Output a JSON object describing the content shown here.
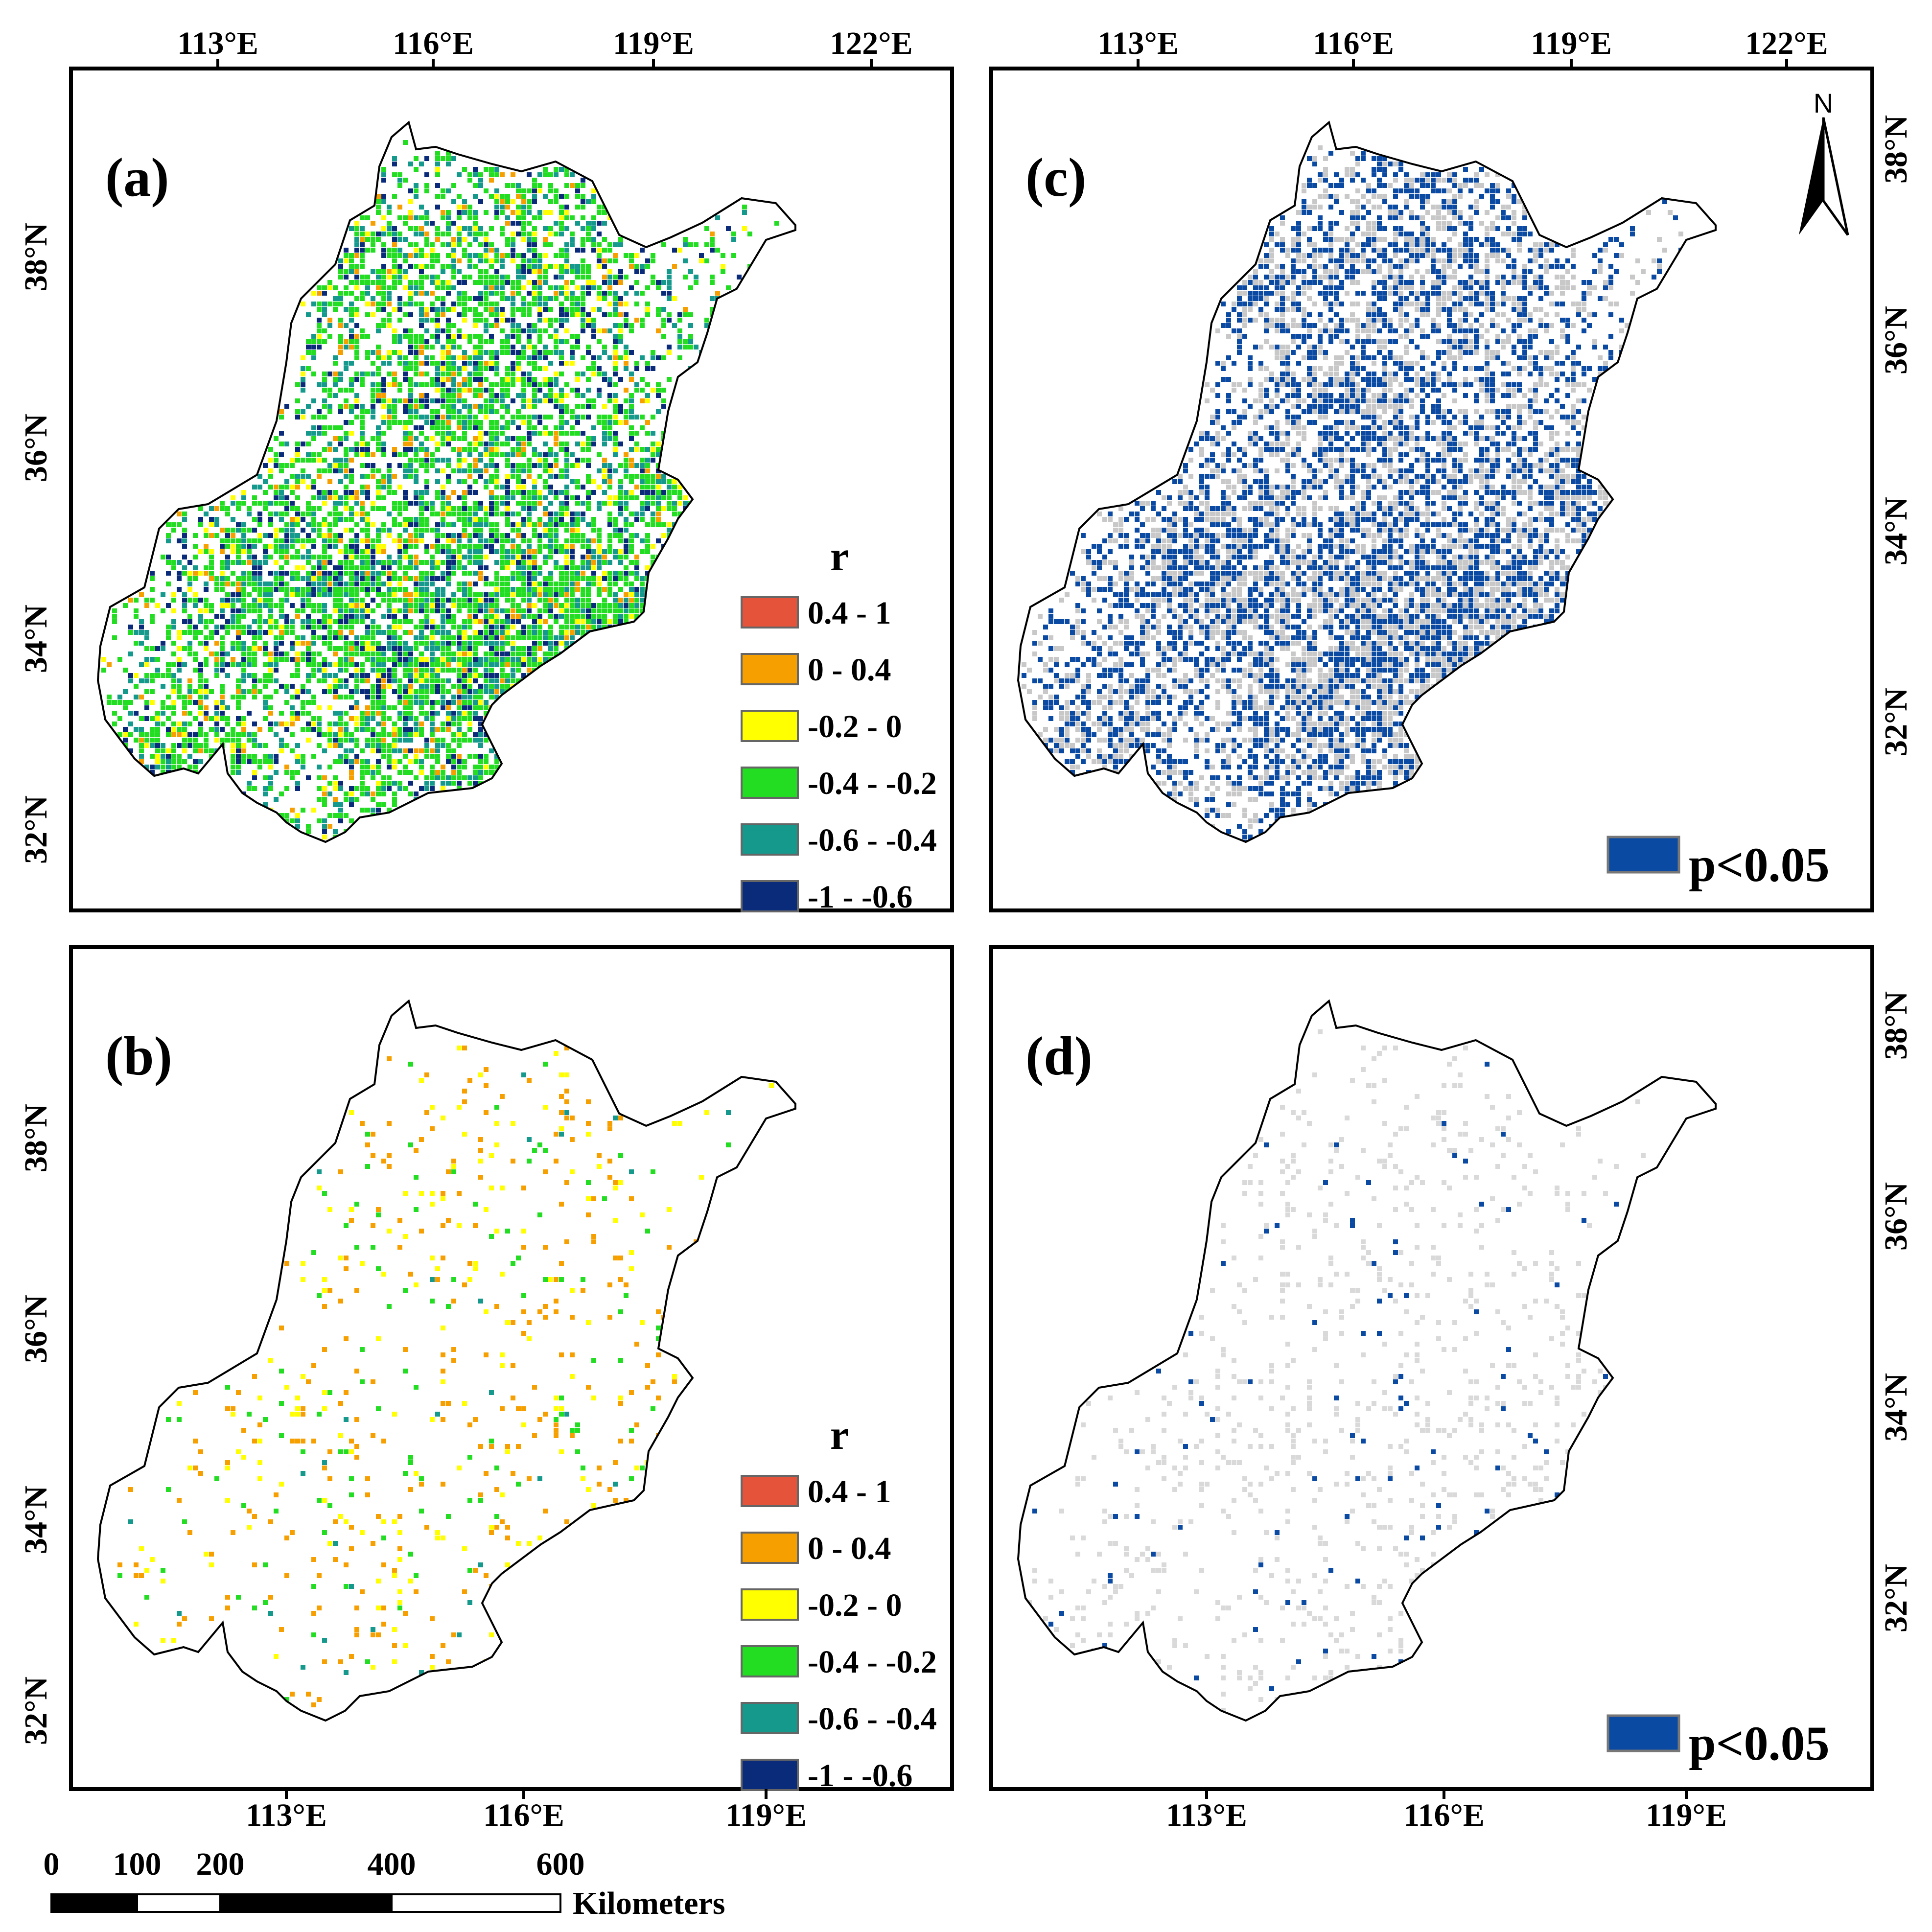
{
  "figure": {
    "panels": [
      {
        "id": "a",
        "label": "(a)",
        "variant": "r"
      },
      {
        "id": "b",
        "label": "(b)",
        "variant": "r"
      },
      {
        "id": "c",
        "label": "(c)",
        "variant": "p"
      },
      {
        "id": "d",
        "label": "(d)",
        "variant": "p"
      }
    ],
    "top_longitude_labels": [
      "113°E",
      "116°E",
      "119°E",
      "122°E"
    ],
    "bottom_longitude_labels": [
      "113°E",
      "116°E",
      "119°E"
    ],
    "latitude_labels": [
      "38°N",
      "36°N",
      "34°N",
      "32°N"
    ]
  },
  "legend_r": {
    "title": "r",
    "classes": [
      {
        "label": "0.4 - 1",
        "color": "#e4533a"
      },
      {
        "label": "0 - 0.4",
        "color": "#f5a000"
      },
      {
        "label": "-0.2 - 0",
        "color": "#ffff00"
      },
      {
        "label": "-0.4 - -0.2",
        "color": "#22dd22"
      },
      {
        "label": "-0.6 - -0.4",
        "color": "#14998c"
      },
      {
        "label": "-1 - -0.6",
        "color": "#0a2a7a"
      }
    ]
  },
  "legend_p": {
    "label": "p<0.05",
    "color": "#0b4aa2",
    "nonsignificant_color": "#c8c8c8"
  },
  "north_arrow": {
    "label": "N"
  },
  "scale_bar": {
    "ticks": [
      "0",
      "100",
      "200",
      "400",
      "600"
    ],
    "unit": "Kilometers"
  }
}
